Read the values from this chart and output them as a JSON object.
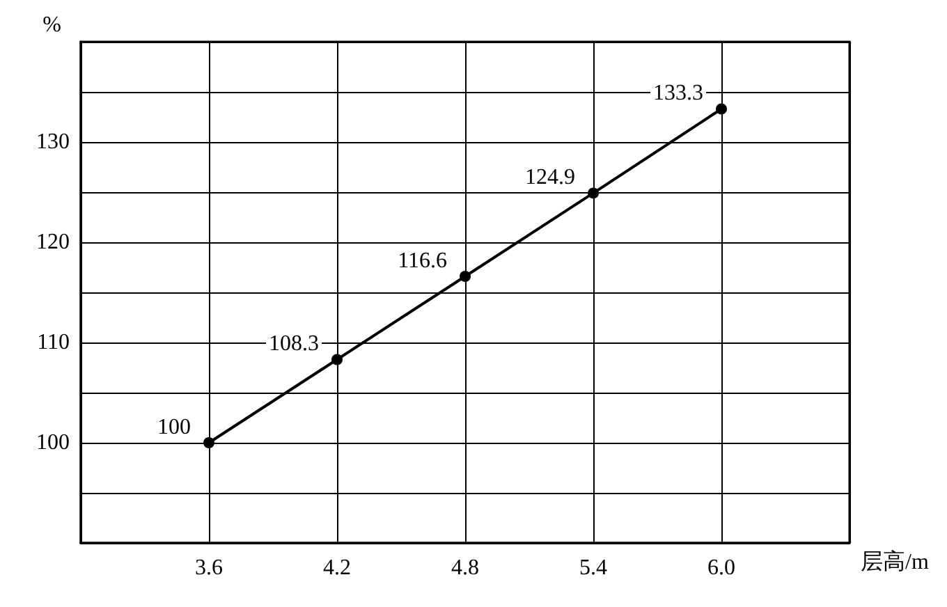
{
  "chart_data": {
    "type": "line",
    "xlabel": "层高/m",
    "ylabel": "%",
    "x": [
      3.6,
      4.2,
      4.8,
      5.4,
      6.0
    ],
    "series": [
      {
        "color": "#000000",
        "values": [
          100,
          108.3,
          116.6,
          124.9,
          133.3
        ]
      }
    ],
    "xlim": [
      3.0,
      6.6
    ],
    "xticks": [
      {
        "value": 3.0,
        "label": null
      },
      3.6,
      4.2,
      4.8,
      5.4,
      {
        "value": 6.0,
        "label": "6.0"
      },
      {
        "value": 6.6,
        "label": null
      }
    ],
    "ylim": [
      90,
      140
    ],
    "yticks": [
      {
        "value": 90,
        "label": null
      },
      {
        "value": 95,
        "label": null
      },
      100,
      {
        "value": 105,
        "label": null
      },
      110,
      {
        "value": 115,
        "label": null
      },
      120,
      {
        "value": 125,
        "label": null
      },
      130,
      {
        "value": 135,
        "label": null
      },
      {
        "value": 140,
        "label": null
      }
    ],
    "grid": true,
    "data_labels": true,
    "marker": "circle",
    "line_style": "solid"
  }
}
